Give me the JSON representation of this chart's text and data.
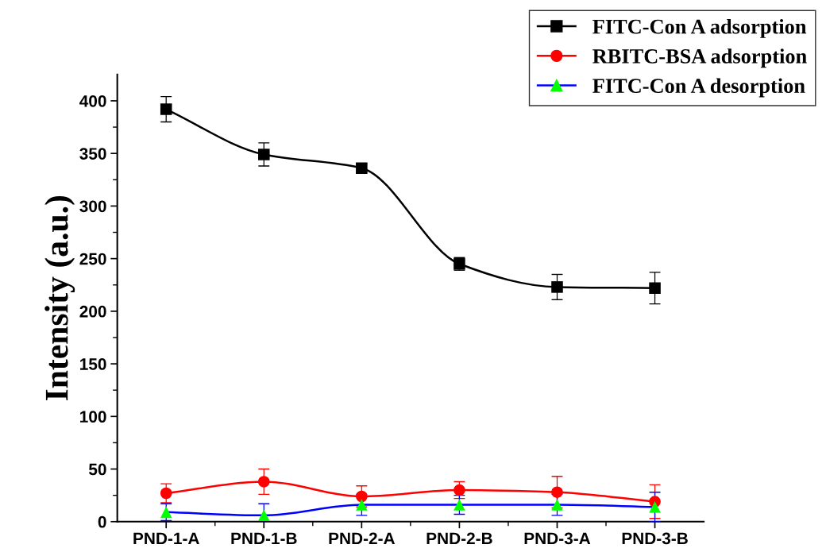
{
  "chart_data": {
    "type": "line",
    "ylabel": "Intensity (a.u.)",
    "categories": [
      "PND-1-A",
      "PND-1-B",
      "PND-2-A",
      "PND-2-B",
      "PND-3-A",
      "PND-3-B"
    ],
    "series": [
      {
        "name": "FITC-Con A adsorption",
        "color": "#000000",
        "marker": "square",
        "values": [
          392,
          349,
          336,
          245,
          223,
          222
        ],
        "errors": [
          12,
          11,
          4,
          6,
          12,
          15
        ]
      },
      {
        "name": "RBITC-BSA adsorption",
        "color": "#ff0000",
        "marker": "circle",
        "values": [
          27,
          38,
          24,
          30,
          28,
          19
        ],
        "errors": [
          9,
          12,
          10,
          8,
          15,
          16
        ]
      },
      {
        "name": "FITC-Con A desorption",
        "color": "#0000ff",
        "colors": [
          "#00ff00",
          "#00ff00",
          "#00ff00",
          "#00ff00",
          "#00ff00",
          "#00ff00"
        ],
        "marker": "triangle",
        "values": [
          9,
          6,
          16,
          16,
          16,
          14
        ],
        "errors": [
          8,
          11,
          10,
          9,
          10,
          14
        ]
      }
    ],
    "ylim": [
      0,
      425
    ],
    "yticks": [
      0,
      50,
      100,
      150,
      200,
      250,
      300,
      350,
      400
    ],
    "grid": false,
    "legend": "top right"
  }
}
